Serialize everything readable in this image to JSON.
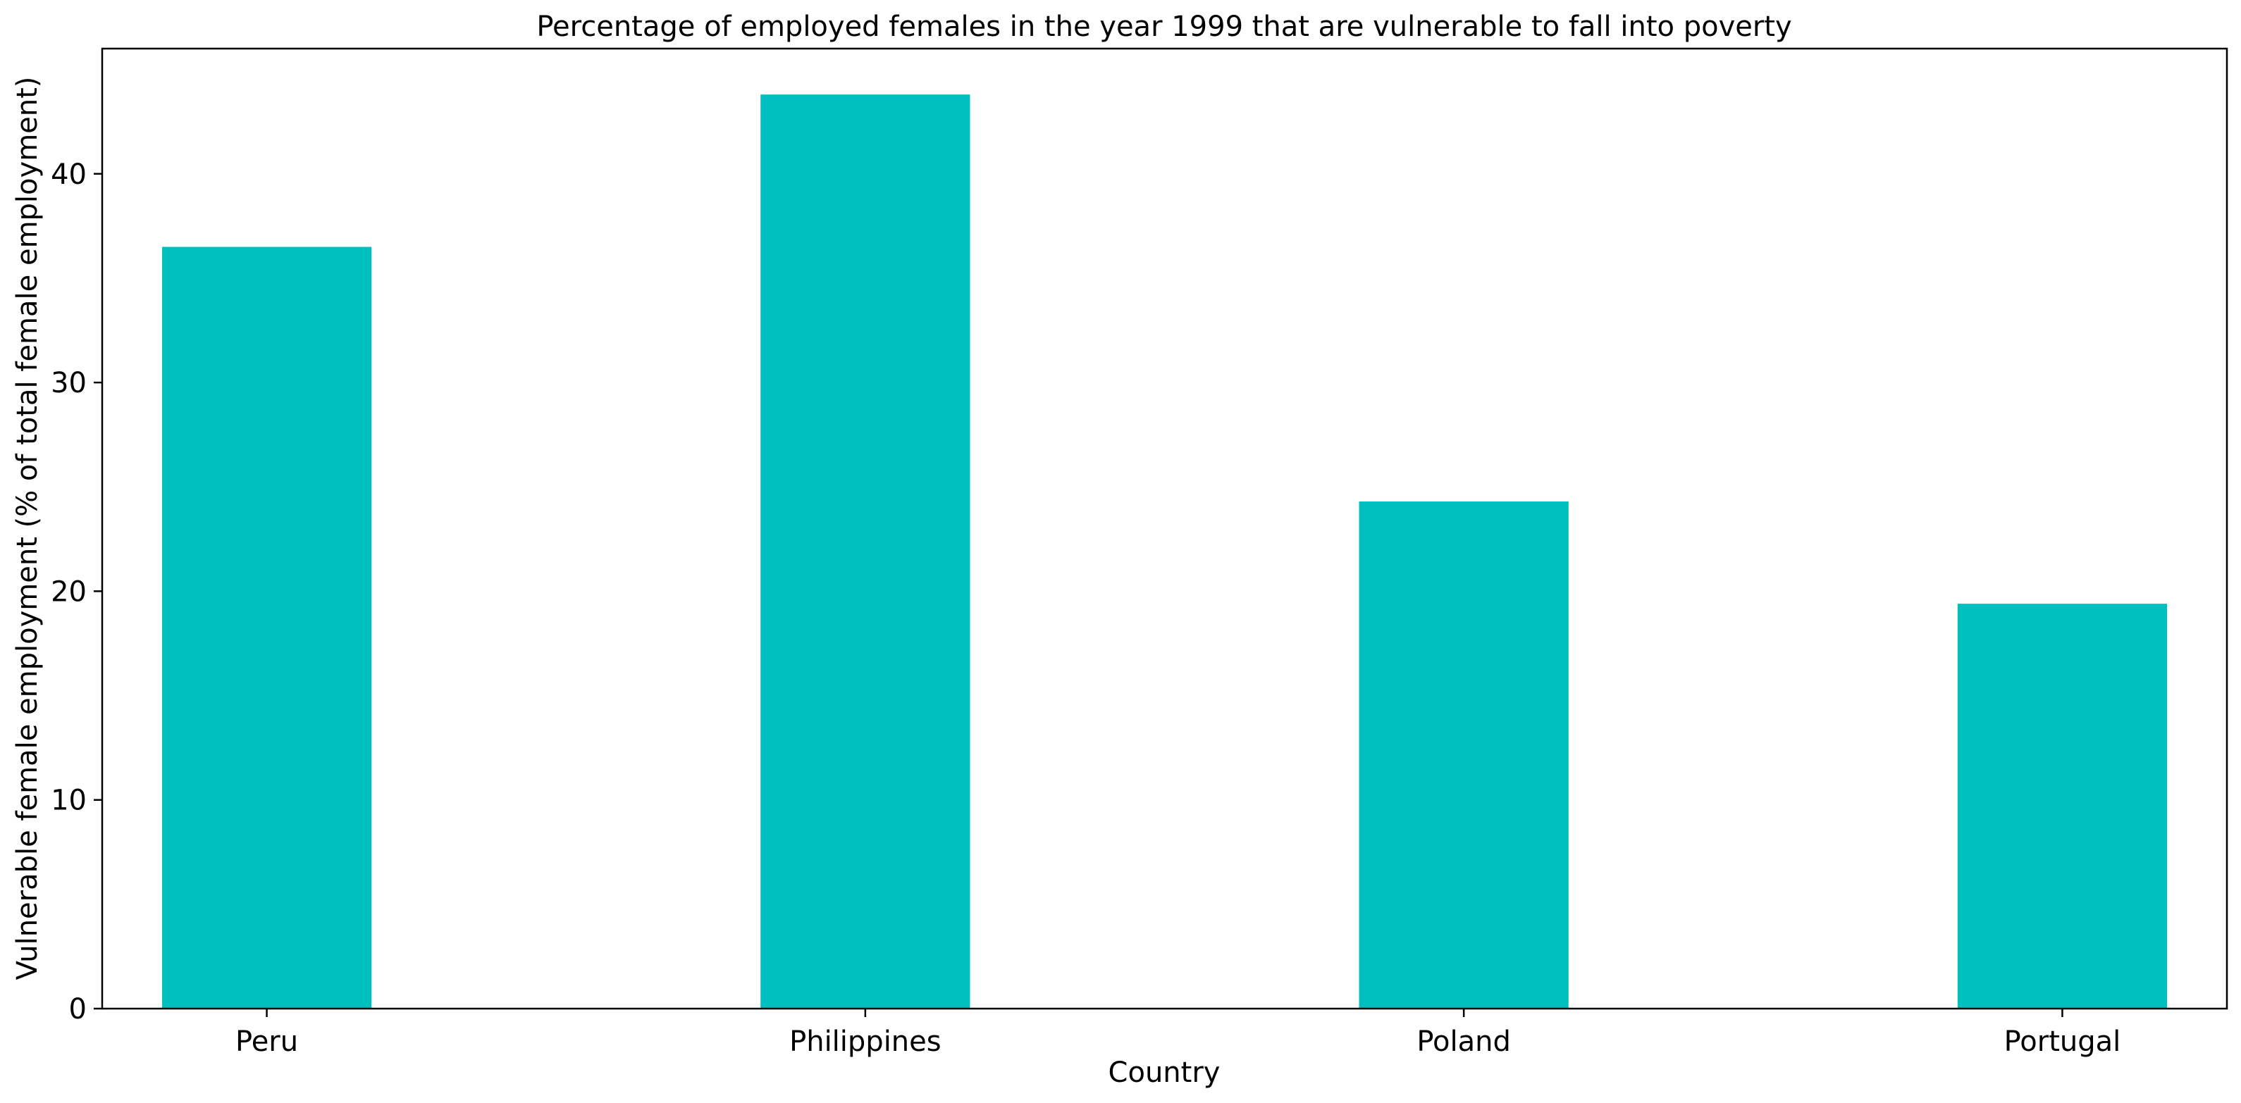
{
  "chart_data": {
    "type": "bar",
    "title": "Percentage of employed females in the year 1999 that are vulnerable to fall into poverty",
    "xlabel": "Country",
    "ylabel": "Vulnerable female employment (% of total female employment)",
    "categories": [
      "Peru",
      "Philippines",
      "Poland",
      "Portugal"
    ],
    "values": [
      36.5,
      43.8,
      24.3,
      19.4
    ],
    "ylim": [
      0,
      46
    ],
    "yticks": [
      0,
      10,
      20,
      30,
      40
    ],
    "grid": false,
    "legend": "none",
    "bar_color": "#00bfbf"
  }
}
